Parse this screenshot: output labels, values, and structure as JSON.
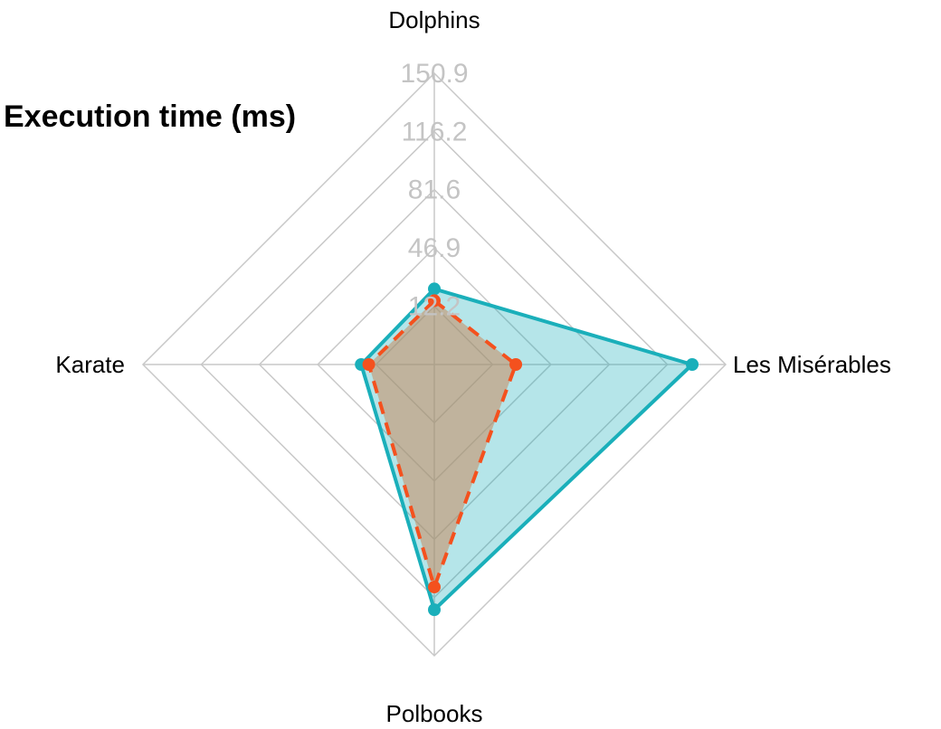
{
  "chart_data": {
    "type": "radar",
    "title": "Execution time (ms)",
    "axes": [
      "Dolphins",
      "Les Misérables",
      "Polbooks",
      "Karate"
    ],
    "ticks": [
      12.2,
      46.9,
      81.6,
      116.2,
      150.9
    ],
    "range": [
      -22.5,
      150.9
    ],
    "grid": true,
    "series": [
      {
        "values": [
          22.5,
          131.0,
          123.5,
          21.0
        ],
        "color": "#1aafba",
        "fill": "#1aafba",
        "line_style": "solid"
      },
      {
        "values": [
          15.5,
          26.0,
          110.0,
          16.5
        ],
        "color": "#f4511e",
        "fill": "#c98a5e",
        "line_style": "dashed"
      }
    ]
  }
}
